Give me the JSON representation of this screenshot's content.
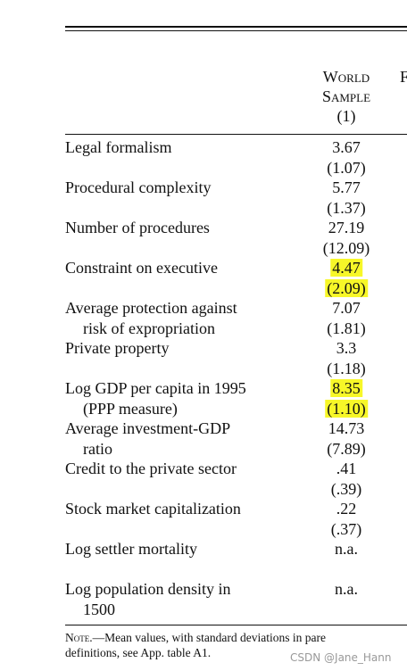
{
  "table": {
    "header": {
      "columns": [
        {
          "lines": [
            "World",
            "Sample",
            "(1)"
          ]
        },
        {
          "lines": [
            "F"
          ]
        }
      ]
    },
    "rows": [
      {
        "label": [
          "Legal formalism"
        ],
        "mean": "3.67",
        "sd": "(1.07)",
        "highlight": false
      },
      {
        "label": [
          "Procedural complexity"
        ],
        "mean": "5.77",
        "sd": "(1.37)",
        "highlight": false
      },
      {
        "label": [
          "Number of procedures"
        ],
        "mean": "27.19",
        "sd": "(12.09)",
        "highlight": false
      },
      {
        "label": [
          "Constraint on executive"
        ],
        "mean": "4.47",
        "sd": "(2.09)",
        "highlight": true
      },
      {
        "label": [
          "Average protection against",
          "risk of expropriation"
        ],
        "mean": "7.07",
        "sd": "(1.81)",
        "highlight": false
      },
      {
        "label": [
          "Private property"
        ],
        "mean": "3.3",
        "sd": "(1.18)",
        "highlight": false
      },
      {
        "label": [
          "Log GDP per capita in 1995",
          "(PPP measure)"
        ],
        "mean": "8.35",
        "sd": "(1.10)",
        "highlight": true
      },
      {
        "label": [
          "Average investment-GDP",
          "ratio"
        ],
        "mean": "14.73",
        "sd": "(7.89)",
        "highlight": false
      },
      {
        "label": [
          "Credit to the private sector"
        ],
        "mean": ".41",
        "sd": "(.39)",
        "highlight": false
      },
      {
        "label": [
          "Stock market capitalization"
        ],
        "mean": ".22",
        "sd": "(.37)",
        "highlight": false
      },
      {
        "label": [
          "Log settler mortality"
        ],
        "mean": "n.a.",
        "sd": null,
        "highlight": false
      },
      {
        "label": [
          "Log population density in",
          "1500"
        ],
        "mean": "n.a.",
        "sd": null,
        "highlight": false
      }
    ],
    "note": {
      "label": "Note.",
      "lines": [
        "—Mean values, with standard deviations in pare",
        "definitions, see App. table A1."
      ]
    }
  },
  "watermark": "CSDN @Jane_Hann"
}
